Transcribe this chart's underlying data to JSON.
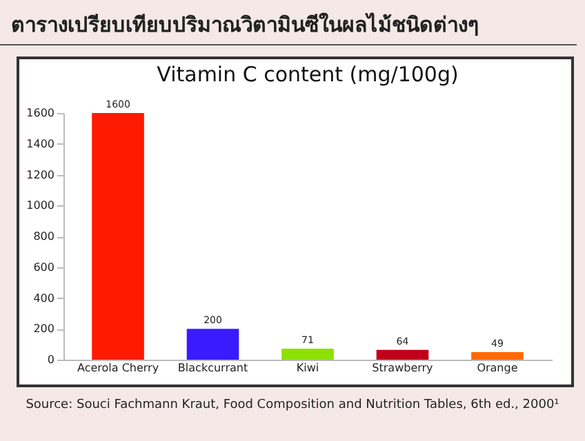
{
  "chart_data": {
    "type": "bar",
    "title": "ตารางเปรียบเทียบปริมาณวิตามินซีในผลไม้ชนิดต่างๆ",
    "subtitle": "Vitamin C content (mg/100g)",
    "categories": [
      "Acerola Cherry",
      "Blackcurrant",
      "Kiwi",
      "Strawberry",
      "Orange"
    ],
    "values": [
      1600,
      200,
      71,
      64,
      49
    ],
    "colors": [
      "#ff1a00",
      "#3a1aff",
      "#8ee000",
      "#c0001a",
      "#ff6a00"
    ],
    "ylim": [
      0,
      1600
    ],
    "yticks": [
      0,
      200,
      400,
      600,
      800,
      1000,
      1200,
      1400,
      1600
    ],
    "data_labels": true,
    "annotations": [
      "Source: Souci Fachmann Kraut, Food Composition and Nutrition Tables, 6th ed., 2000¹"
    ]
  }
}
